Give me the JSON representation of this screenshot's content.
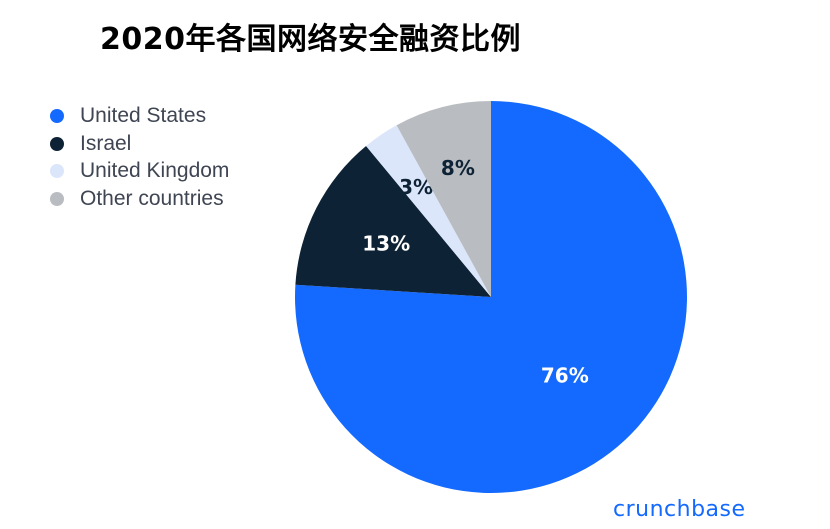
{
  "chart_data": {
    "type": "pie",
    "title": "2020年各国网络安全融资比例",
    "slices": [
      {
        "name": "United States",
        "value": 76,
        "label": "76%",
        "color": "#146aff",
        "text_color": "#ffffff"
      },
      {
        "name": "Israel",
        "value": 13,
        "label": "13%",
        "color": "#0e2235",
        "text_color": "#ffffff"
      },
      {
        "name": "United Kingdom",
        "value": 3,
        "label": "3%",
        "color": "#dbe6fb",
        "text_color": "#0e2235"
      },
      {
        "name": "Other countries",
        "value": 8,
        "label": "8%",
        "color": "#b9bdc2",
        "text_color": "#0e2235"
      }
    ],
    "legend_position": "top-left"
  },
  "brand": "crunchbase",
  "colors": {
    "brand": "#146aff"
  }
}
